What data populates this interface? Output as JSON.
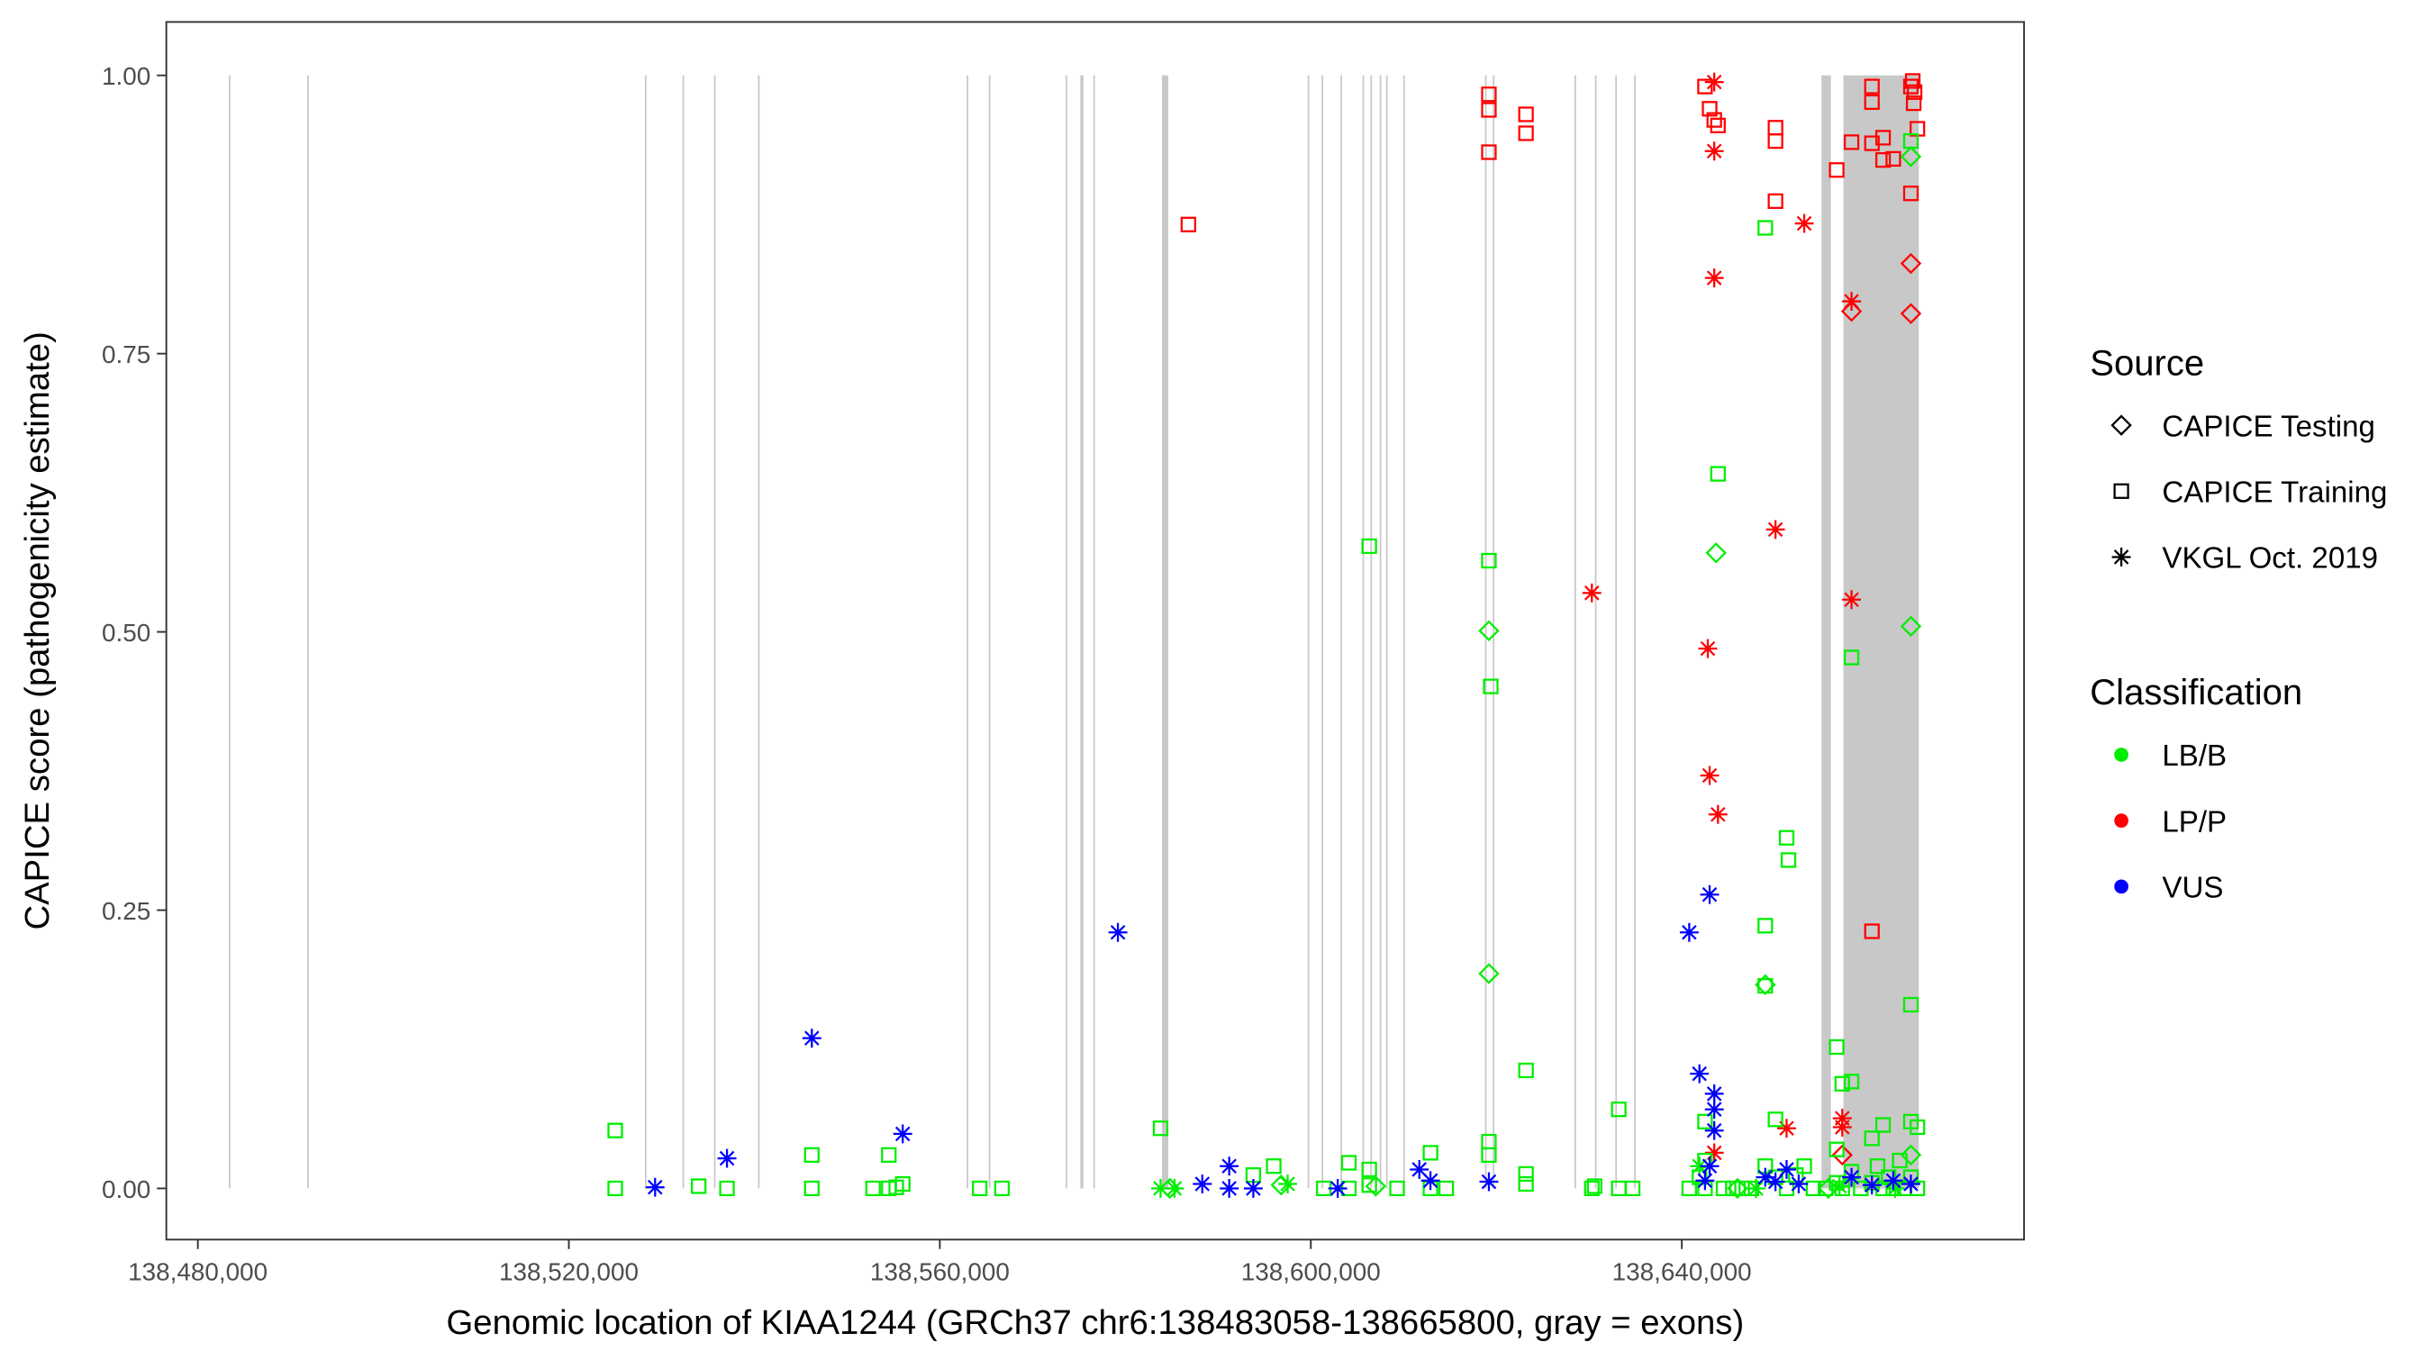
{
  "chart_data": {
    "type": "scatter",
    "xlabel": "Genomic location of KIAA1244 (GRCh37 chr6:138483058-138665800, gray = exons)",
    "ylabel": "CAPICE score (pathogenicity estimate)",
    "xlim": [
      138476600,
      138676900
    ],
    "ylim": [
      -0.046,
      1.048
    ],
    "xticks": [
      138480000,
      138520000,
      138560000,
      138600000,
      138640000
    ],
    "xtick_labels": [
      "138,480,000",
      "138,520,000",
      "138,560,000",
      "138,600,000",
      "138,640,000"
    ],
    "yticks": [
      0,
      0.25,
      0.5,
      0.75,
      1
    ],
    "ytick_labels": [
      "0.00",
      "0.25",
      "0.50",
      "0.75",
      "1.00"
    ],
    "grid": false,
    "legend_placement": "right",
    "legend": {
      "source_title": "Source",
      "sources": [
        {
          "key": "T",
          "label": "CAPICE Testing",
          "shape": "diamond"
        },
        {
          "key": "R",
          "label": "CAPICE Training",
          "shape": "square"
        },
        {
          "key": "V",
          "label": "VKGL Oct. 2019",
          "shape": "asterisk"
        }
      ],
      "class_title": "Classification",
      "classes": [
        {
          "key": "B",
          "label": "LB/B",
          "color": "#00ee00"
        },
        {
          "key": "P",
          "label": "LP/P",
          "color": "#ff0000"
        },
        {
          "key": "U",
          "label": "VUS",
          "color": "#0000ff"
        }
      ]
    },
    "exon_color": "#c8c8c8",
    "exons": [
      [
        138483340,
        138483440
      ],
      [
        138491800,
        138491900
      ],
      [
        138528200,
        138528300
      ],
      [
        138532250,
        138532350
      ],
      [
        138535650,
        138535750
      ],
      [
        138540400,
        138540500
      ],
      [
        138562900,
        138563000
      ],
      [
        138565280,
        138565380
      ],
      [
        138573570,
        138573670
      ],
      [
        138575150,
        138575480
      ],
      [
        138576550,
        138576700
      ],
      [
        138583950,
        138584630
      ],
      [
        138599650,
        138599750
      ],
      [
        138601170,
        138601270
      ],
      [
        138603200,
        138603300
      ],
      [
        138605570,
        138605670
      ],
      [
        138606420,
        138606520
      ],
      [
        138607430,
        138607530
      ],
      [
        138608110,
        138608210
      ],
      [
        138609970,
        138610070
      ],
      [
        138618780,
        138618880
      ],
      [
        138619620,
        138619720
      ],
      [
        138628430,
        138628530
      ],
      [
        138630630,
        138630730
      ],
      [
        138632830,
        138632930
      ],
      [
        138634860,
        138634960
      ],
      [
        138655060,
        138656070
      ],
      [
        138657420,
        138665550
      ]
    ],
    "points": [
      [
        138586800,
        0.866,
        "R",
        "P"
      ],
      [
        138619200,
        0.983,
        "R",
        "P"
      ],
      [
        138619200,
        0.969,
        "R",
        "P"
      ],
      [
        138619200,
        0.931,
        "R",
        "P"
      ],
      [
        138623200,
        0.965,
        "R",
        "P"
      ],
      [
        138623200,
        0.948,
        "R",
        "P"
      ],
      [
        138642500,
        0.99,
        "R",
        "P"
      ],
      [
        138643000,
        0.97,
        "R",
        "P"
      ],
      [
        138643500,
        0.96,
        "R",
        "P"
      ],
      [
        138643900,
        0.955,
        "R",
        "P"
      ],
      [
        138650100,
        0.953,
        "R",
        "P"
      ],
      [
        138650100,
        0.941,
        "R",
        "P"
      ],
      [
        138650100,
        0.887,
        "R",
        "P"
      ],
      [
        138656700,
        0.915,
        "R",
        "P"
      ],
      [
        138658300,
        0.94,
        "R",
        "P"
      ],
      [
        138660500,
        0.99,
        "R",
        "P"
      ],
      [
        138660500,
        0.976,
        "R",
        "P"
      ],
      [
        138660500,
        0.939,
        "R",
        "P"
      ],
      [
        138661700,
        0.944,
        "R",
        "P"
      ],
      [
        138661700,
        0.924,
        "R",
        "P"
      ],
      [
        138662800,
        0.925,
        "R",
        "P"
      ],
      [
        138664700,
        0.894,
        "R",
        "P"
      ],
      [
        138664700,
        0.99,
        "R",
        "P"
      ],
      [
        138664900,
        0.995,
        "R",
        "P"
      ],
      [
        138665100,
        0.985,
        "R",
        "P"
      ],
      [
        138665000,
        0.975,
        "R",
        "P"
      ],
      [
        138665400,
        0.952,
        "R",
        "P"
      ],
      [
        138660500,
        0.231,
        "R",
        "P"
      ],
      [
        138643500,
        0.994,
        "V",
        "P"
      ],
      [
        138643500,
        0.932,
        "V",
        "P"
      ],
      [
        138643500,
        0.818,
        "V",
        "P"
      ],
      [
        138653200,
        0.867,
        "V",
        "P"
      ],
      [
        138650100,
        0.592,
        "V",
        "P"
      ],
      [
        138630300,
        0.535,
        "V",
        "P"
      ],
      [
        138658300,
        0.529,
        "V",
        "P"
      ],
      [
        138642800,
        0.485,
        "V",
        "P"
      ],
      [
        138643000,
        0.371,
        "V",
        "P"
      ],
      [
        138643900,
        0.336,
        "V",
        "P"
      ],
      [
        138658300,
        0.797,
        "V",
        "P"
      ],
      [
        138643500,
        0.032,
        "V",
        "P"
      ],
      [
        138651300,
        0.054,
        "V",
        "P"
      ],
      [
        138657300,
        0.063,
        "V",
        "P"
      ],
      [
        138657300,
        0.055,
        "V",
        "P"
      ],
      [
        138658300,
        0.788,
        "T",
        "P"
      ],
      [
        138664700,
        0.786,
        "T",
        "P"
      ],
      [
        138664700,
        0.831,
        "T",
        "P"
      ],
      [
        138657300,
        0.03,
        "T",
        "P"
      ],
      [
        138606300,
        0.577,
        "R",
        "B"
      ],
      [
        138619200,
        0.564,
        "R",
        "B"
      ],
      [
        138619400,
        0.451,
        "R",
        "B"
      ],
      [
        138649000,
        0.863,
        "R",
        "B"
      ],
      [
        138643900,
        0.642,
        "R",
        "B"
      ],
      [
        138651300,
        0.315,
        "R",
        "B"
      ],
      [
        138651500,
        0.295,
        "R",
        "B"
      ],
      [
        138649000,
        0.236,
        "R",
        "B"
      ],
      [
        138649000,
        0.182,
        "R",
        "B"
      ],
      [
        138658300,
        0.477,
        "R",
        "B"
      ],
      [
        138664700,
        0.165,
        "R",
        "B"
      ],
      [
        138656700,
        0.127,
        "R",
        "B"
      ],
      [
        138657300,
        0.094,
        "R",
        "B"
      ],
      [
        138658300,
        0.096,
        "R",
        "B"
      ],
      [
        138623200,
        0.106,
        "R",
        "B"
      ],
      [
        138633200,
        0.071,
        "R",
        "B"
      ],
      [
        138664700,
        0.941,
        "R",
        "B"
      ],
      [
        138583800,
        0.054,
        "R",
        "B"
      ],
      [
        138525000,
        0.052,
        "R",
        "B"
      ],
      [
        138546200,
        0.03,
        "R",
        "B"
      ],
      [
        138554500,
        0.03,
        "R",
        "B"
      ],
      [
        138604100,
        0.023,
        "R",
        "B"
      ],
      [
        138606300,
        0.017,
        "R",
        "B"
      ],
      [
        138612900,
        0.032,
        "R",
        "B"
      ],
      [
        138619200,
        0.042,
        "R",
        "B"
      ],
      [
        138619200,
        0.03,
        "R",
        "B"
      ],
      [
        138596000,
        0.02,
        "R",
        "B"
      ],
      [
        138650100,
        0.062,
        "R",
        "B"
      ],
      [
        138642500,
        0.06,
        "R",
        "B"
      ],
      [
        138661700,
        0.057,
        "R",
        "B"
      ],
      [
        138664700,
        0.06,
        "R",
        "B"
      ],
      [
        138665400,
        0.055,
        "R",
        "B"
      ],
      [
        138660500,
        0.045,
        "R",
        "B"
      ],
      [
        138642500,
        0.025,
        "R",
        "B"
      ],
      [
        138656700,
        0.035,
        "R",
        "B"
      ],
      [
        138525000,
        0.0,
        "R",
        "B"
      ],
      [
        138534000,
        0.002,
        "R",
        "B"
      ],
      [
        138537050,
        0.0,
        "R",
        "B"
      ],
      [
        138546200,
        0.0,
        "R",
        "B"
      ],
      [
        138552800,
        0.0,
        "R",
        "B"
      ],
      [
        138554500,
        0.0,
        "R",
        "B"
      ],
      [
        138555300,
        0.001,
        "R",
        "B"
      ],
      [
        138556000,
        0.004,
        "R",
        "B"
      ],
      [
        138564300,
        0.0,
        "R",
        "B"
      ],
      [
        138566700,
        0.0,
        "R",
        "B"
      ],
      [
        138593800,
        0.012,
        "R",
        "B"
      ],
      [
        138601400,
        0.0,
        "R",
        "B"
      ],
      [
        138604100,
        0.0,
        "R",
        "B"
      ],
      [
        138606300,
        0.003,
        "R",
        "B"
      ],
      [
        138609300,
        0.0,
        "R",
        "B"
      ],
      [
        138612900,
        0.0,
        "R",
        "B"
      ],
      [
        138614600,
        0.0,
        "R",
        "B"
      ],
      [
        138623200,
        0.004,
        "R",
        "B"
      ],
      [
        138623200,
        0.013,
        "R",
        "B"
      ],
      [
        138630300,
        0.0,
        "R",
        "B"
      ],
      [
        138630600,
        0.002,
        "R",
        "B"
      ],
      [
        138633200,
        0.0,
        "R",
        "B"
      ],
      [
        138634700,
        0.0,
        "R",
        "B"
      ],
      [
        138640800,
        0.0,
        "R",
        "B"
      ],
      [
        138641900,
        0.01,
        "R",
        "B"
      ],
      [
        138642500,
        0.0,
        "R",
        "B"
      ],
      [
        138644500,
        0.0,
        "R",
        "B"
      ],
      [
        138645500,
        0.0,
        "R",
        "B"
      ],
      [
        138646500,
        0.0,
        "R",
        "B"
      ],
      [
        138647500,
        0.0,
        "R",
        "B"
      ],
      [
        138649000,
        0.02,
        "R",
        "B"
      ],
      [
        138650100,
        0.01,
        "R",
        "B"
      ],
      [
        138651300,
        0.0,
        "R",
        "B"
      ],
      [
        138652300,
        0.012,
        "R",
        "B"
      ],
      [
        138653200,
        0.02,
        "R",
        "B"
      ],
      [
        138654200,
        0.0,
        "R",
        "B"
      ],
      [
        138655500,
        0.0,
        "R",
        "B"
      ],
      [
        138656700,
        0.005,
        "R",
        "B"
      ],
      [
        138657300,
        0.0,
        "R",
        "B"
      ],
      [
        138658300,
        0.015,
        "R",
        "B"
      ],
      [
        138659300,
        0.0,
        "R",
        "B"
      ],
      [
        138660500,
        0.005,
        "R",
        "B"
      ],
      [
        138661100,
        0.02,
        "R",
        "B"
      ],
      [
        138661700,
        0.0,
        "R",
        "B"
      ],
      [
        138662300,
        0.01,
        "R",
        "B"
      ],
      [
        138662800,
        0.0,
        "R",
        "B"
      ],
      [
        138663500,
        0.025,
        "R",
        "B"
      ],
      [
        138664000,
        0.0,
        "R",
        "B"
      ],
      [
        138664700,
        0.01,
        "R",
        "B"
      ],
      [
        138665400,
        0.0,
        "R",
        "B"
      ],
      [
        138619200,
        0.501,
        "T",
        "B"
      ],
      [
        138619200,
        0.193,
        "T",
        "B"
      ],
      [
        138649000,
        0.183,
        "T",
        "B"
      ],
      [
        138643700,
        0.571,
        "T",
        "B"
      ],
      [
        138664700,
        0.505,
        "T",
        "B"
      ],
      [
        138664700,
        0.927,
        "T",
        "B"
      ],
      [
        138664700,
        0.03,
        "T",
        "B"
      ],
      [
        138584800,
        0.0,
        "T",
        "B"
      ],
      [
        138596800,
        0.003,
        "T",
        "B"
      ],
      [
        138607000,
        0.002,
        "T",
        "B"
      ],
      [
        138646000,
        0.0,
        "T",
        "B"
      ],
      [
        138655800,
        0.0,
        "T",
        "B"
      ],
      [
        138583800,
        0.0,
        "V",
        "B"
      ],
      [
        138585300,
        0.0,
        "V",
        "B"
      ],
      [
        138597500,
        0.004,
        "V",
        "B"
      ],
      [
        138641900,
        0.02,
        "V",
        "B"
      ],
      [
        138648000,
        0.0,
        "V",
        "B"
      ],
      [
        138657000,
        0.002,
        "V",
        "B"
      ],
      [
        138663000,
        0.0,
        "V",
        "B"
      ],
      [
        138546200,
        0.135,
        "V",
        "U"
      ],
      [
        138579200,
        0.23,
        "V",
        "U"
      ],
      [
        138537050,
        0.027,
        "V",
        "U"
      ],
      [
        138556000,
        0.049,
        "V",
        "U"
      ],
      [
        138529300,
        0.001,
        "V",
        "U"
      ],
      [
        138588300,
        0.004,
        "V",
        "U"
      ],
      [
        138591200,
        0.02,
        "V",
        "U"
      ],
      [
        138591200,
        0.0,
        "V",
        "U"
      ],
      [
        138593800,
        0.0,
        "V",
        "U"
      ],
      [
        138602900,
        0.0,
        "V",
        "U"
      ],
      [
        138611700,
        0.017,
        "V",
        "U"
      ],
      [
        138612900,
        0.007,
        "V",
        "U"
      ],
      [
        138619200,
        0.006,
        "V",
        "U"
      ],
      [
        138640800,
        0.23,
        "V",
        "U"
      ],
      [
        138643000,
        0.264,
        "V",
        "U"
      ],
      [
        138641900,
        0.103,
        "V",
        "U"
      ],
      [
        138643500,
        0.085,
        "V",
        "U"
      ],
      [
        138643500,
        0.071,
        "V",
        "U"
      ],
      [
        138643500,
        0.052,
        "V",
        "U"
      ],
      [
        138643000,
        0.02,
        "V",
        "U"
      ],
      [
        138642500,
        0.007,
        "V",
        "U"
      ],
      [
        138649000,
        0.01,
        "V",
        "U"
      ],
      [
        138650100,
        0.006,
        "V",
        "U"
      ],
      [
        138651300,
        0.017,
        "V",
        "U"
      ],
      [
        138652600,
        0.004,
        "V",
        "U"
      ],
      [
        138660500,
        0.003,
        "V",
        "U"
      ],
      [
        138658300,
        0.01,
        "V",
        "U"
      ],
      [
        138662800,
        0.007,
        "V",
        "U"
      ],
      [
        138664700,
        0.004,
        "V",
        "U"
      ]
    ]
  }
}
